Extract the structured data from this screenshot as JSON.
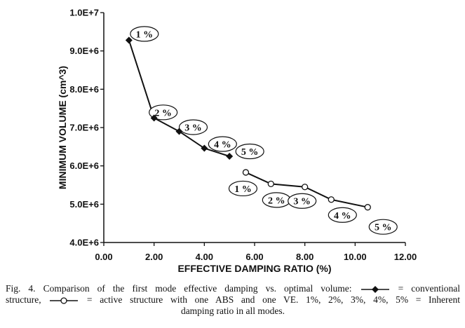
{
  "chart_data": {
    "type": "line",
    "xlabel": "EFFECTIVE DAMPING RATIO (%)",
    "ylabel": "MINIMUM VOLUME (cm^3)",
    "xlim": [
      0,
      12
    ],
    "ylim": [
      4000000,
      10000000
    ],
    "x_ticks": [
      0,
      2,
      4,
      6,
      8,
      10,
      12
    ],
    "x_tick_labels": [
      "0.00",
      "2.00",
      "4.00",
      "6.00",
      "8.00",
      "10.00",
      "12.00"
    ],
    "y_ticks": [
      4000000,
      5000000,
      6000000,
      7000000,
      8000000,
      9000000,
      10000000
    ],
    "y_tick_labels": [
      "4.0E+6",
      "5.0E+6",
      "6.0E+6",
      "7.0E+6",
      "8.0E+6",
      "9.0E+6",
      "1.0E+7"
    ],
    "grid": false,
    "series": [
      {
        "marker": "diamond",
        "x": [
          1.0,
          2.0,
          3.0,
          4.0,
          5.0
        ],
        "y": [
          9280000,
          7250000,
          6900000,
          6460000,
          6250000
        ],
        "point_labels": [
          "1 %",
          "2 %",
          "3 %",
          "4 %",
          "5 %"
        ]
      },
      {
        "marker": "circle",
        "x": [
          5.65,
          6.65,
          8.0,
          9.05,
          10.5
        ],
        "y": [
          5830000,
          5530000,
          5450000,
          5120000,
          4920000
        ],
        "point_labels": [
          "1 %",
          "2 %",
          "3 %",
          "4 %",
          "5 %"
        ]
      }
    ]
  },
  "caption": {
    "line1_a": "Fig. 4. Comparison of the first mode effective damping vs. optimal volume:",
    "line1_b": "= conventional",
    "line2_a": "structure,",
    "line2_b": "= active structure with one ABS and one VE. 1%, 2%, 3%, 4%, 5% = Inherent",
    "line3": "damping ratio in all modes."
  }
}
